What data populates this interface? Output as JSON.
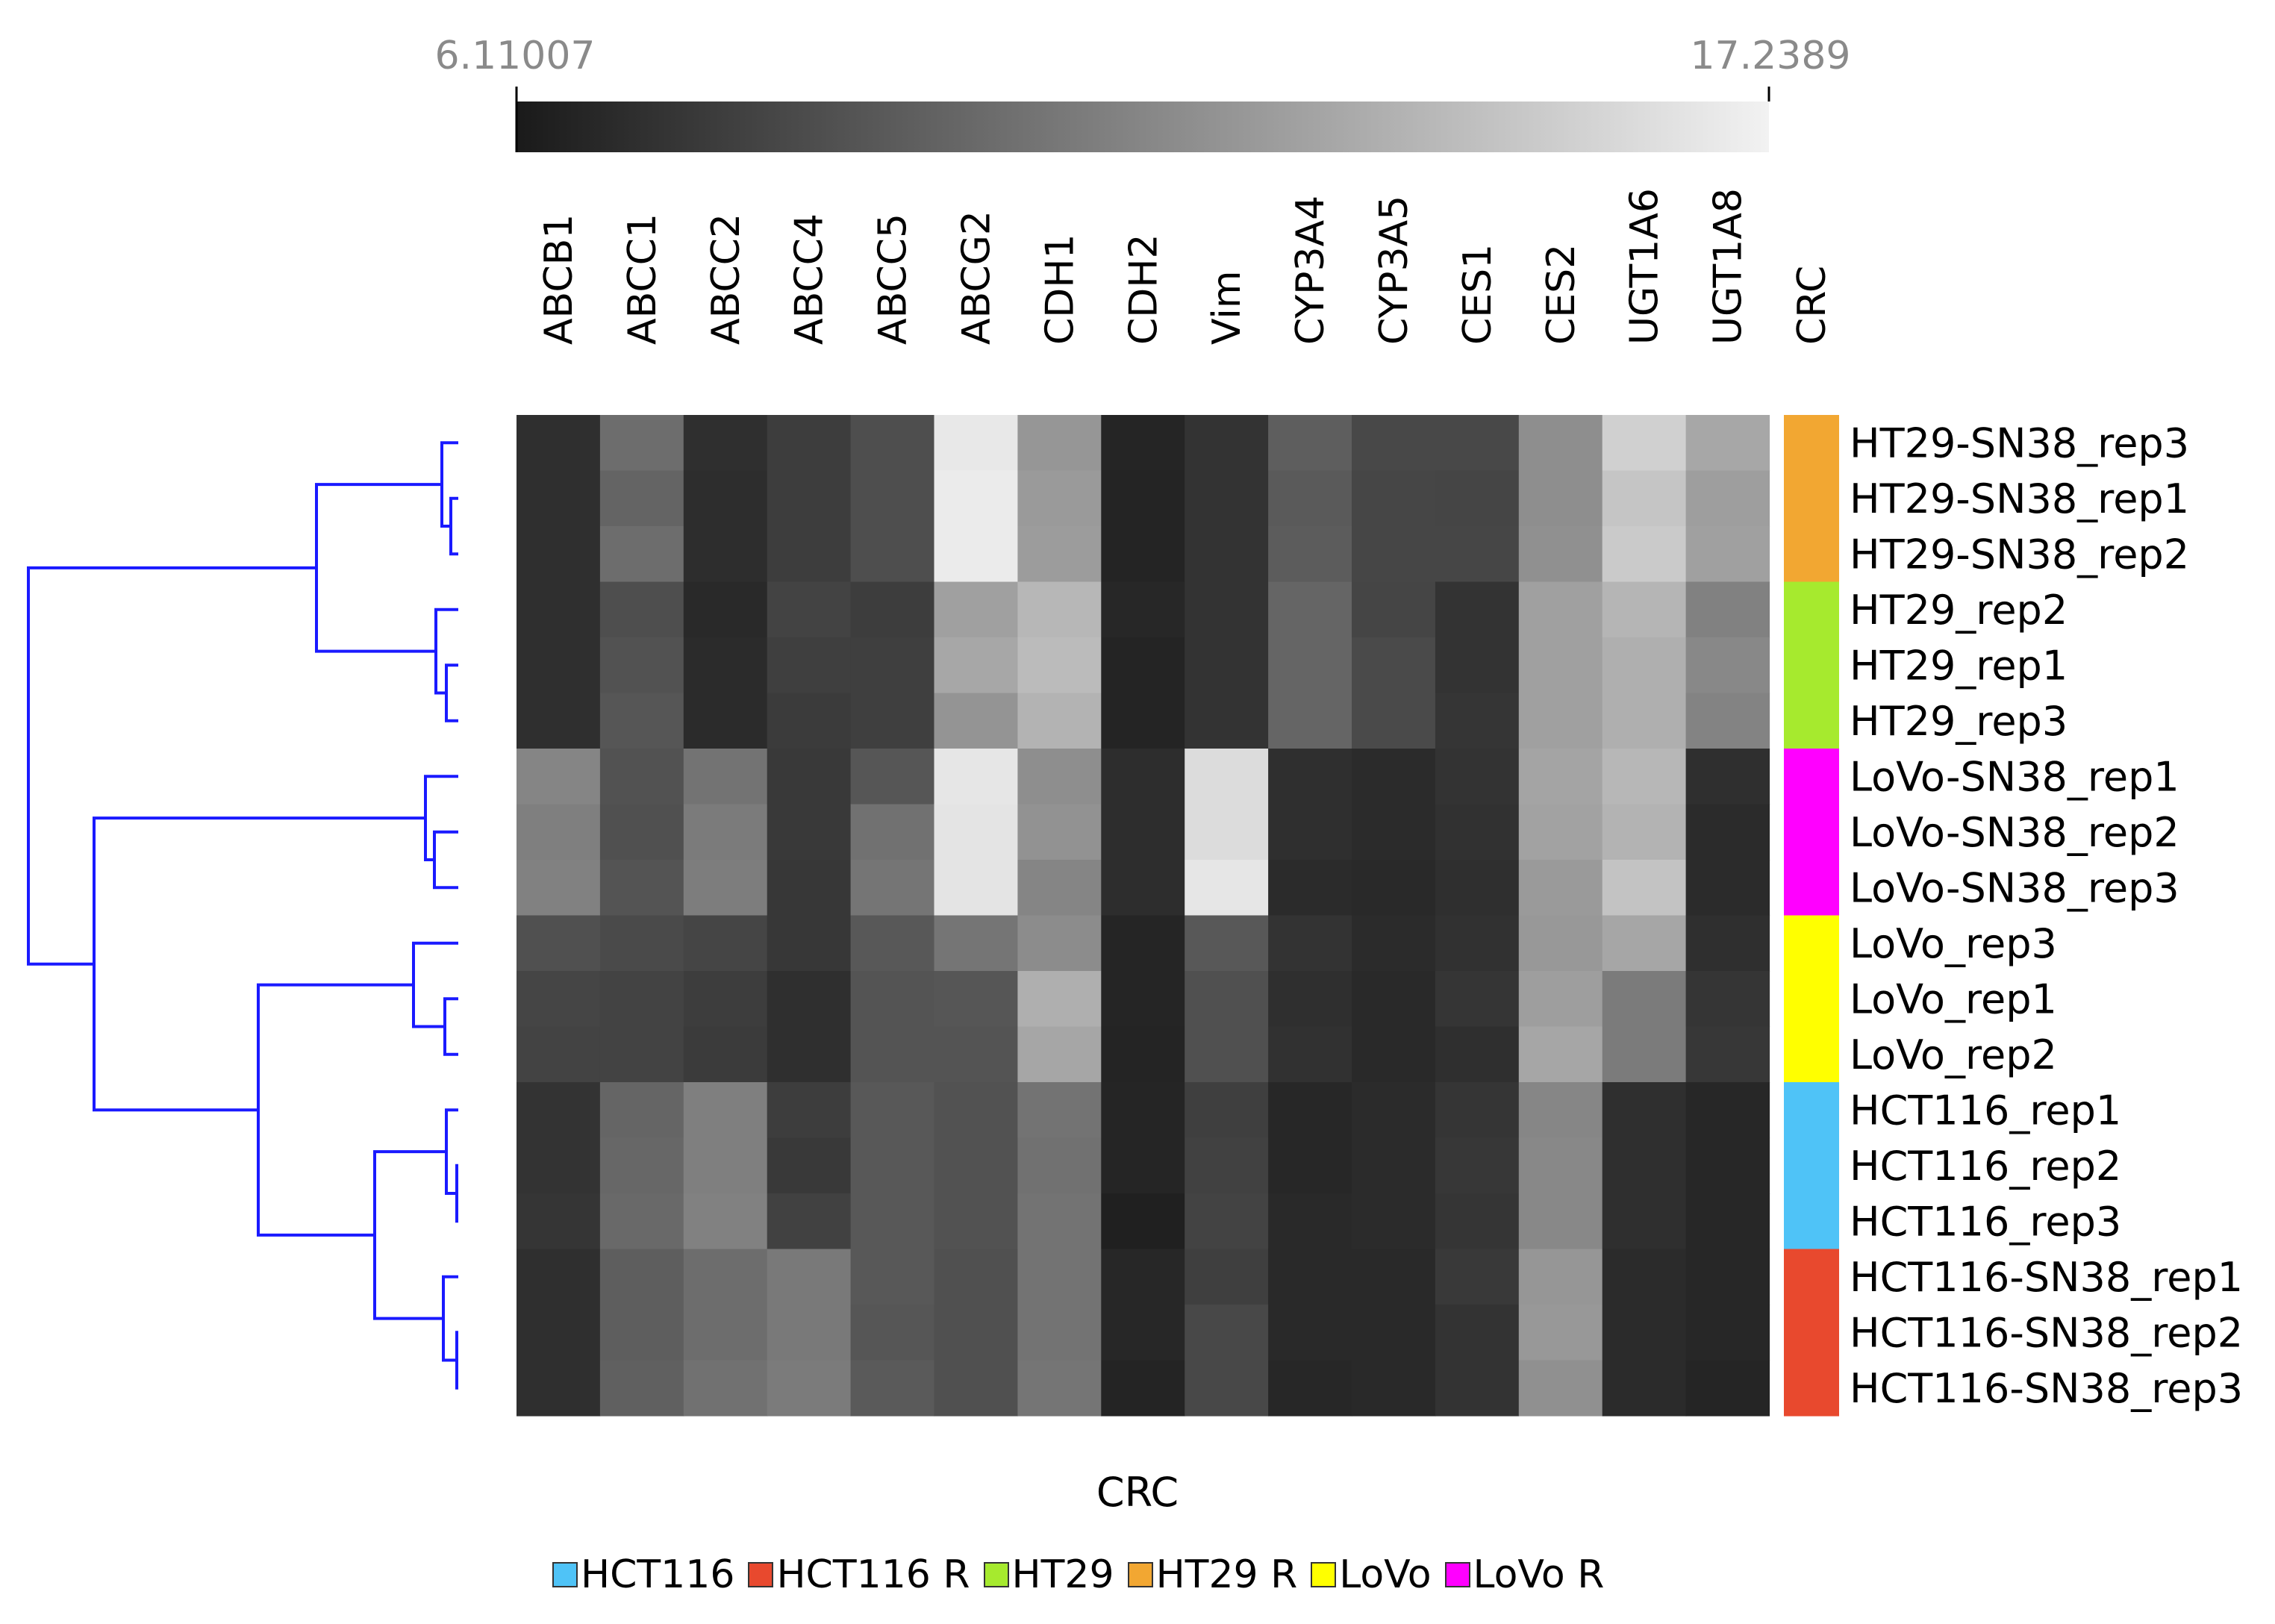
{
  "chart_data": {
    "type": "heatmap",
    "color_scale": {
      "min": "6.11007",
      "max": "17.2389",
      "low_color": "#1a1a1a",
      "high_color": "#f2f2f2"
    },
    "genes": [
      "ABCB1",
      "ABCC1",
      "ABCC2",
      "ABCC4",
      "ABCC5",
      "ABCG2",
      "CDH1",
      "CDH2",
      "Vim",
      "CYP3A4",
      "CYP3A5",
      "CES1",
      "CES2",
      "UGT1A6",
      "UGT1A8"
    ],
    "annotation_column_label": "CRC",
    "samples": [
      {
        "name": "HT29-SN38_rep3",
        "group": "HT29 R"
      },
      {
        "name": "HT29-SN38_rep1",
        "group": "HT29 R"
      },
      {
        "name": "HT29-SN38_rep2",
        "group": "HT29 R"
      },
      {
        "name": "HT29_rep2",
        "group": "HT29"
      },
      {
        "name": "HT29_rep1",
        "group": "HT29"
      },
      {
        "name": "HT29_rep3",
        "group": "HT29"
      },
      {
        "name": "LoVo-SN38_rep1",
        "group": "LoVo R"
      },
      {
        "name": "LoVo-SN38_rep2",
        "group": "LoVo R"
      },
      {
        "name": "LoVo-SN38_rep3",
        "group": "LoVo R"
      },
      {
        "name": "LoVo_rep3",
        "group": "LoVo"
      },
      {
        "name": "LoVo_rep1",
        "group": "LoVo"
      },
      {
        "name": "LoVo_rep2",
        "group": "LoVo"
      },
      {
        "name": "HCT116_rep1",
        "group": "HCT116"
      },
      {
        "name": "HCT116_rep2",
        "group": "HCT116"
      },
      {
        "name": "HCT116_rep3",
        "group": "HCT116"
      },
      {
        "name": "HCT116-SN38_rep1",
        "group": "HCT116 R"
      },
      {
        "name": "HCT116-SN38_rep2",
        "group": "HCT116 R"
      },
      {
        "name": "HCT116-SN38_rep3",
        "group": "HCT116 R"
      }
    ],
    "values": [
      [
        7.2,
        10.4,
        7.2,
        7.9,
        8.8,
        16.7,
        12.5,
        6.7,
        7.4,
        9.6,
        8.5,
        8.5,
        12.1,
        15.5,
        13.4
      ],
      [
        7.2,
        9.9,
        7.1,
        7.9,
        8.8,
        16.9,
        12.7,
        6.6,
        7.4,
        9.4,
        8.4,
        8.3,
        12.1,
        14.9,
        12.9
      ],
      [
        7.2,
        10.4,
        7.1,
        7.9,
        8.8,
        16.9,
        12.8,
        6.6,
        7.4,
        9.5,
        8.4,
        8.4,
        12.2,
        15.2,
        13.0
      ],
      [
        7.2,
        8.8,
        6.9,
        8.2,
        7.9,
        13.0,
        14.2,
        6.8,
        7.4,
        10.0,
        8.3,
        7.4,
        13.0,
        14.1,
        11.4
      ],
      [
        7.2,
        9.0,
        7.0,
        8.0,
        8.0,
        13.4,
        14.4,
        6.6,
        7.4,
        10.0,
        8.6,
        7.4,
        13.0,
        13.8,
        11.8
      ],
      [
        7.2,
        9.2,
        7.0,
        7.8,
        8.0,
        12.4,
        14.0,
        6.6,
        7.4,
        10.0,
        8.6,
        7.5,
        13.0,
        13.8,
        11.5
      ],
      [
        11.6,
        9.0,
        10.7,
        7.7,
        9.2,
        16.6,
        12.1,
        7.1,
        16.1,
        7.2,
        7.0,
        7.4,
        13.2,
        14.2,
        7.2
      ],
      [
        11.3,
        8.9,
        11.1,
        7.7,
        10.6,
        16.5,
        12.3,
        7.1,
        16.1,
        7.2,
        7.0,
        7.3,
        13.1,
        14.0,
        7.0
      ],
      [
        11.4,
        9.1,
        11.2,
        7.6,
        10.8,
        16.5,
        11.6,
        7.1,
        16.6,
        7.0,
        6.9,
        7.2,
        12.7,
        14.8,
        7.0
      ],
      [
        8.9,
        8.6,
        8.3,
        7.6,
        9.3,
        10.8,
        12.0,
        6.7,
        9.3,
        7.4,
        7.0,
        7.3,
        12.6,
        13.3,
        7.2
      ],
      [
        8.3,
        8.2,
        7.9,
        7.2,
        9.1,
        9.2,
        13.8,
        6.7,
        8.9,
        7.2,
        6.9,
        7.5,
        12.9,
        11.1,
        7.5
      ],
      [
        8.2,
        8.2,
        7.8,
        7.2,
        9.1,
        9.1,
        13.3,
        6.6,
        8.9,
        7.3,
        6.9,
        7.2,
        13.3,
        11.1,
        7.6
      ],
      [
        7.4,
        10.0,
        11.3,
        7.9,
        9.3,
        9.0,
        10.7,
        6.7,
        8.0,
        6.8,
        7.0,
        7.5,
        11.7,
        7.2,
        6.8
      ],
      [
        7.4,
        10.1,
        11.3,
        7.7,
        9.3,
        9.0,
        10.6,
        6.7,
        8.1,
        6.8,
        7.0,
        7.6,
        11.8,
        7.2,
        6.8
      ],
      [
        7.5,
        10.2,
        11.4,
        8.1,
        9.3,
        9.0,
        10.7,
        6.4,
        8.2,
        6.9,
        7.0,
        7.5,
        11.8,
        7.2,
        6.8
      ],
      [
        7.2,
        9.6,
        10.4,
        11.0,
        9.3,
        8.9,
        10.7,
        6.8,
        8.0,
        6.9,
        6.9,
        7.7,
        12.5,
        7.0,
        6.8
      ],
      [
        7.2,
        9.6,
        10.4,
        11.0,
        9.2,
        8.9,
        10.7,
        6.8,
        8.5,
        6.9,
        6.9,
        7.4,
        12.6,
        7.0,
        6.8
      ],
      [
        7.2,
        9.7,
        10.6,
        11.1,
        9.4,
        8.9,
        10.8,
        6.6,
        8.5,
        6.8,
        6.9,
        7.4,
        12.2,
        7.0,
        6.7
      ]
    ],
    "dendrogram": "rows",
    "xlabel": "CRC",
    "legend": {
      "placement": "bottom",
      "entries": [
        {
          "label": "HCT116",
          "color": "#4fc3f7"
        },
        {
          "label": "HCT116 R",
          "color": "#e8492e"
        },
        {
          "label": "HT29",
          "color": "#a6ea2e"
        },
        {
          "label": "HT29 R",
          "color": "#f2a732"
        },
        {
          "label": "LoVo",
          "color": "#ffff00"
        },
        {
          "label": "LoVo R",
          "color": "#ff00ff"
        }
      ]
    },
    "dendrogram_color": "#1a1aff"
  }
}
